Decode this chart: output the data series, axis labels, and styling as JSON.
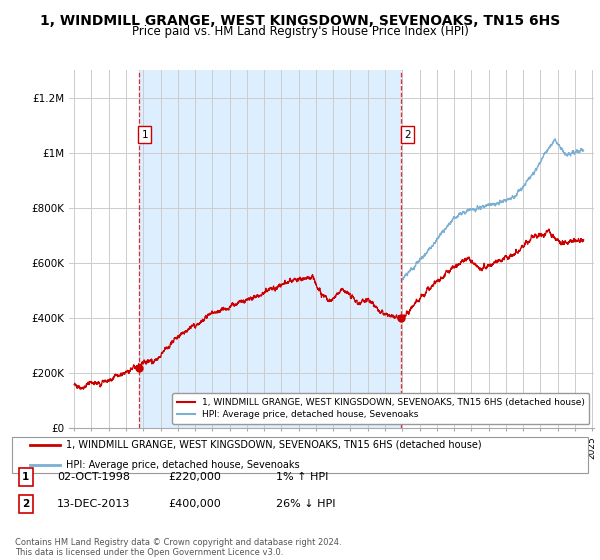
{
  "title": "1, WINDMILL GRANGE, WEST KINGSDOWN, SEVENOAKS, TN15 6HS",
  "subtitle": "Price paid vs. HM Land Registry's House Price Index (HPI)",
  "title_fontsize": 10,
  "subtitle_fontsize": 8.5,
  "x_start_year": 1995,
  "x_end_year": 2025,
  "ylim": [
    0,
    1300000
  ],
  "yticks": [
    0,
    200000,
    400000,
    600000,
    800000,
    1000000,
    1200000
  ],
  "ytick_labels": [
    "£0",
    "£200K",
    "£400K",
    "£600K",
    "£800K",
    "£1M",
    "£1.2M"
  ],
  "sale1_year": 1998.75,
  "sale1_price": 220000,
  "sale1_label": "1",
  "sale1_date": "02-OCT-1998",
  "sale1_hpi": "1% ↑ HPI",
  "sale2_year": 2013.95,
  "sale2_price": 400000,
  "sale2_label": "2",
  "sale2_date": "13-DEC-2013",
  "sale2_hpi": "26% ↓ HPI",
  "hpi_color": "#7bafd4",
  "sale_color": "#cc0000",
  "vline_color": "#cc0000",
  "fill_color": "#ddeeff",
  "background_color": "#ffffff",
  "grid_color": "#cccccc",
  "legend_label_sale": "1, WINDMILL GRANGE, WEST KINGSDOWN, SEVENOAKS, TN15 6HS (detached house)",
  "legend_label_hpi": "HPI: Average price, detached house, Sevenoaks",
  "footer": "Contains HM Land Registry data © Crown copyright and database right 2024.\nThis data is licensed under the Open Government Licence v3.0."
}
